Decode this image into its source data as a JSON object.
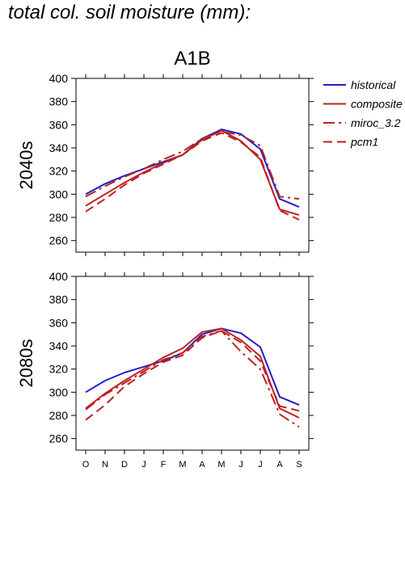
{
  "page": {
    "title": "total col. soil moisture (mm):"
  },
  "chart_data": {
    "type": "line",
    "scenario": "A1B",
    "categories": [
      "O",
      "N",
      "D",
      "J",
      "F",
      "M",
      "A",
      "M",
      "J",
      "J",
      "A",
      "S"
    ],
    "ylim": [
      250,
      400
    ],
    "yticks": [
      260,
      280,
      300,
      320,
      340,
      360,
      380,
      400
    ],
    "grid": false,
    "legend_position": "right",
    "legend": [
      {
        "name": "historical",
        "color": "#2020c8",
        "dash": "solid"
      },
      {
        "name": "composite",
        "color": "#c02020",
        "dash": "solid"
      },
      {
        "name": "miroc_3.2",
        "color": "#c02020",
        "dash": "dashdot"
      },
      {
        "name": "pcm1",
        "color": "#c02020",
        "dash": "dashed"
      }
    ],
    "panels": [
      {
        "ylabel": "2040s",
        "series": [
          {
            "name": "historical",
            "values": [
              300,
              309,
              316,
              322,
              328,
              334,
              348,
              356,
              352,
              339,
              296,
              289
            ]
          },
          {
            "name": "composite",
            "values": [
              290,
              300,
              310,
              319,
              327,
              334,
              347,
              355,
              346,
              330,
              287,
              282
            ]
          },
          {
            "name": "miroc_3.2",
            "values": [
              298,
              307,
              315,
              322,
              330,
              337,
              348,
              354,
              351,
              342,
              298,
              296
            ]
          },
          {
            "name": "pcm1",
            "values": [
              285,
              296,
              308,
              318,
              326,
              334,
              346,
              353,
              345,
              332,
              286,
              278
            ]
          }
        ]
      },
      {
        "ylabel": "2080s",
        "series": [
          {
            "name": "historical",
            "values": [
              300,
              310,
              317,
              322,
              327,
              334,
              350,
              355,
              351,
              339,
              296,
              289
            ]
          },
          {
            "name": "composite",
            "values": [
              286,
              299,
              310,
              320,
              330,
              338,
              352,
              355,
              345,
              331,
              286,
              278
            ]
          },
          {
            "name": "miroc_3.2",
            "values": [
              285,
              298,
              308,
              318,
              328,
              334,
              348,
              353,
              335,
              320,
              281,
              270
            ]
          },
          {
            "name": "pcm1",
            "values": [
              276,
              289,
              305,
              316,
              326,
              332,
              347,
              353,
              343,
              327,
              288,
              284
            ]
          }
        ]
      }
    ]
  }
}
